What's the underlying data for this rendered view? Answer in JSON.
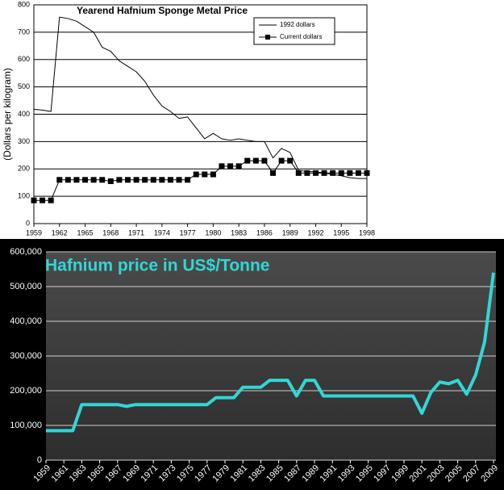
{
  "chart_data": [
    {
      "type": "line",
      "title": "Yearend Hafnium Sponge Metal Price",
      "y_label": "(Dollars per kilogram)",
      "x": [
        1959,
        1960,
        1961,
        1962,
        1963,
        1964,
        1965,
        1966,
        1967,
        1968,
        1969,
        1970,
        1971,
        1972,
        1973,
        1974,
        1975,
        1976,
        1977,
        1978,
        1979,
        1980,
        1981,
        1982,
        1983,
        1984,
        1985,
        1986,
        1987,
        1988,
        1989,
        1990,
        1991,
        1992,
        1993,
        1994,
        1995,
        1996,
        1997,
        1998
      ],
      "xlim": [
        1959,
        1998
      ],
      "xticks": [
        1959,
        1962,
        1965,
        1968,
        1971,
        1974,
        1977,
        1980,
        1983,
        1986,
        1989,
        1992,
        1995,
        1998
      ],
      "ylim": [
        0,
        800
      ],
      "yticks": [
        0,
        100,
        200,
        300,
        400,
        500,
        600,
        700,
        800
      ],
      "grid": true,
      "legend": "top-right",
      "series": [
        {
          "name": "1992 dollars",
          "color": "#000000",
          "marker": "none",
          "values": [
            418,
            415,
            410,
            755,
            750,
            740,
            720,
            700,
            645,
            630,
            595,
            575,
            555,
            520,
            470,
            430,
            410,
            385,
            390,
            350,
            310,
            330,
            310,
            305,
            310,
            305,
            300,
            300,
            240,
            275,
            260,
            195,
            190,
            190,
            185,
            180,
            175,
            168,
            165,
            165
          ]
        },
        {
          "name": "Current dollars",
          "color": "#000000",
          "marker": "square",
          "values": [
            85,
            85,
            85,
            160,
            160,
            160,
            160,
            160,
            160,
            155,
            160,
            160,
            160,
            160,
            160,
            160,
            160,
            160,
            160,
            180,
            180,
            180,
            210,
            210,
            210,
            230,
            230,
            230,
            185,
            230,
            230,
            185,
            185,
            185,
            185,
            185,
            185,
            185,
            185,
            185
          ]
        }
      ]
    },
    {
      "type": "line",
      "title": "Hafnium price in US$/Tonne",
      "color": "#33d6d6",
      "x": [
        1959,
        1960,
        1961,
        1962,
        1963,
        1964,
        1965,
        1966,
        1967,
        1968,
        1969,
        1970,
        1971,
        1972,
        1973,
        1974,
        1975,
        1976,
        1977,
        1978,
        1979,
        1980,
        1981,
        1982,
        1983,
        1984,
        1985,
        1986,
        1987,
        1988,
        1989,
        1990,
        1991,
        1992,
        1993,
        1994,
        1995,
        1996,
        1997,
        1998,
        1999,
        2000,
        2001,
        2002,
        2003,
        2004,
        2005,
        2006,
        2007,
        2008,
        2009
      ],
      "values": [
        85000,
        85000,
        85000,
        85000,
        160000,
        160000,
        160000,
        160000,
        160000,
        155000,
        160000,
        160000,
        160000,
        160000,
        160000,
        160000,
        160000,
        160000,
        160000,
        180000,
        180000,
        180000,
        210000,
        210000,
        210000,
        230000,
        230000,
        230000,
        185000,
        230000,
        230000,
        185000,
        185000,
        185000,
        185000,
        185000,
        185000,
        185000,
        185000,
        185000,
        185000,
        185000,
        135000,
        195000,
        225000,
        220000,
        230000,
        190000,
        245000,
        340000,
        540000
      ],
      "xlim": [
        1959,
        2009
      ],
      "xticks": [
        1959,
        1961,
        1963,
        1965,
        1967,
        1969,
        1971,
        1973,
        1975,
        1977,
        1979,
        1981,
        1983,
        1985,
        1987,
        1989,
        1991,
        1993,
        1995,
        1997,
        1999,
        2001,
        2003,
        2005,
        2007,
        2009
      ],
      "ylim": [
        0,
        600000
      ],
      "yticks": [
        0,
        {
          "value": 100000,
          "label": "100,000"
        },
        {
          "value": 200000,
          "label": "200,000"
        },
        {
          "value": 300000,
          "label": "300,000"
        },
        {
          "value": 400000,
          "label": "400,000"
        },
        {
          "value": 500000,
          "label": "500,000"
        },
        {
          "value": 600000,
          "label": "600,000"
        }
      ],
      "grid": true
    }
  ]
}
